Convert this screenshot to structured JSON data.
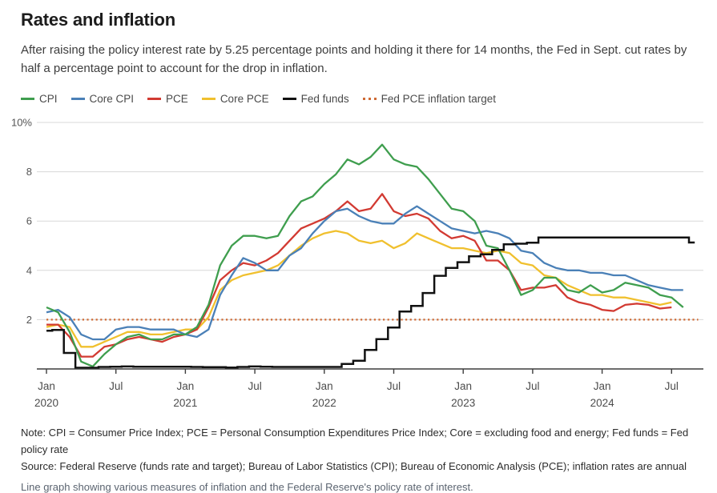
{
  "header": {
    "title": "Rates and inflation",
    "subtitle": "After raising the policy interest rate by 5.25 percentage points and holding it there for 14 months, the Fed in Sept. cut rates by half a percentage point to account for the drop in inflation."
  },
  "legend": [
    {
      "label": "CPI",
      "color": "#3f9e4e",
      "style": "solid"
    },
    {
      "label": "Core CPI",
      "color": "#4a80b7",
      "style": "solid"
    },
    {
      "label": "PCE",
      "color": "#d23a32",
      "style": "solid"
    },
    {
      "label": "Core PCE",
      "color": "#f0c02e",
      "style": "solid"
    },
    {
      "label": "Fed funds",
      "color": "#111111",
      "style": "solid"
    },
    {
      "label": "Fed PCE inflation target",
      "color": "#cf6a34",
      "style": "dotted"
    }
  ],
  "chart_data": {
    "type": "line",
    "title": "Rates and inflation",
    "xlabel": "",
    "ylabel": "percent",
    "ylim": [
      0,
      10
    ],
    "grid": true,
    "x_start_month": "2020-01",
    "y_ticks": [
      {
        "v": 10,
        "label": "10%"
      },
      {
        "v": 8,
        "label": "8"
      },
      {
        "v": 6,
        "label": "6"
      },
      {
        "v": 4,
        "label": "4"
      },
      {
        "v": 2,
        "label": "2"
      }
    ],
    "x_ticks": [
      {
        "m": 0,
        "label": "Jan",
        "year": "2020"
      },
      {
        "m": 6,
        "label": "Jul",
        "year": ""
      },
      {
        "m": 12,
        "label": "Jan",
        "year": "2021"
      },
      {
        "m": 18,
        "label": "Jul",
        "year": ""
      },
      {
        "m": 24,
        "label": "Jan",
        "year": "2022"
      },
      {
        "m": 30,
        "label": "Jul",
        "year": ""
      },
      {
        "m": 36,
        "label": "Jan",
        "year": "2023"
      },
      {
        "m": 42,
        "label": "Jul",
        "year": ""
      },
      {
        "m": 48,
        "label": "Jan",
        "year": "2024"
      },
      {
        "m": 54,
        "label": "Jul",
        "year": ""
      }
    ],
    "target_line": {
      "name": "Fed PCE inflation target",
      "value": 2.0,
      "color": "#cf6a34",
      "end_month": 56.3
    },
    "series": [
      {
        "name": "Core PCE",
        "type": "line",
        "color": "#f0c02e",
        "width": 2.3,
        "values": [
          1.7,
          1.8,
          1.7,
          0.9,
          0.9,
          1.1,
          1.3,
          1.5,
          1.5,
          1.4,
          1.4,
          1.5,
          1.6,
          1.6,
          2.1,
          3.2,
          3.6,
          3.8,
          3.9,
          4.0,
          4.2,
          4.6,
          5.0,
          5.3,
          5.5,
          5.6,
          5.5,
          5.2,
          5.1,
          5.2,
          4.9,
          5.1,
          5.5,
          5.3,
          5.1,
          4.9,
          4.9,
          4.8,
          4.7,
          4.8,
          4.7,
          4.3,
          4.2,
          3.8,
          3.7,
          3.4,
          3.2,
          3.0,
          3.0,
          2.9,
          2.9,
          2.8,
          2.7,
          2.6,
          2.7
        ]
      },
      {
        "name": "PCE",
        "type": "line",
        "color": "#d23a32",
        "width": 2.3,
        "values": [
          1.8,
          1.8,
          1.3,
          0.5,
          0.5,
          0.9,
          1.0,
          1.2,
          1.3,
          1.2,
          1.1,
          1.3,
          1.4,
          1.6,
          2.5,
          3.6,
          4.0,
          4.3,
          4.2,
          4.4,
          4.7,
          5.2,
          5.7,
          5.9,
          6.1,
          6.4,
          6.8,
          6.4,
          6.5,
          7.1,
          6.4,
          6.2,
          6.3,
          6.1,
          5.6,
          5.3,
          5.4,
          5.2,
          4.4,
          4.4,
          4.0,
          3.2,
          3.3,
          3.3,
          3.4,
          2.9,
          2.7,
          2.6,
          2.4,
          2.35,
          2.6,
          2.65,
          2.6,
          2.45,
          2.5
        ]
      },
      {
        "name": "Core CPI",
        "type": "line",
        "color": "#4a80b7",
        "width": 2.3,
        "values": [
          2.3,
          2.4,
          2.1,
          1.4,
          1.2,
          1.2,
          1.6,
          1.7,
          1.7,
          1.6,
          1.6,
          1.6,
          1.4,
          1.3,
          1.6,
          3.0,
          3.8,
          4.5,
          4.3,
          4.0,
          4.0,
          4.6,
          4.9,
          5.5,
          6.0,
          6.4,
          6.5,
          6.2,
          6.0,
          5.9,
          5.9,
          6.3,
          6.6,
          6.3,
          6.0,
          5.7,
          5.6,
          5.5,
          5.6,
          5.5,
          5.3,
          4.8,
          4.7,
          4.3,
          4.1,
          4.0,
          4.0,
          3.9,
          3.9,
          3.8,
          3.8,
          3.6,
          3.4,
          3.3,
          3.2,
          3.2
        ]
      },
      {
        "name": "CPI",
        "type": "line",
        "color": "#3f9e4e",
        "width": 2.3,
        "values": [
          2.5,
          2.3,
          1.5,
          0.3,
          0.1,
          0.6,
          1.0,
          1.3,
          1.4,
          1.2,
          1.2,
          1.4,
          1.4,
          1.7,
          2.6,
          4.2,
          5.0,
          5.4,
          5.4,
          5.3,
          5.4,
          6.2,
          6.8,
          7.0,
          7.5,
          7.9,
          8.5,
          8.3,
          8.6,
          9.1,
          8.5,
          8.3,
          8.2,
          7.7,
          7.1,
          6.5,
          6.4,
          6.0,
          5.0,
          4.9,
          4.0,
          3.0,
          3.2,
          3.7,
          3.7,
          3.2,
          3.1,
          3.4,
          3.1,
          3.2,
          3.5,
          3.4,
          3.3,
          3.0,
          2.9,
          2.5
        ]
      },
      {
        "name": "Fed funds",
        "type": "step",
        "color": "#111111",
        "width": 2.5,
        "values": [
          1.55,
          1.58,
          0.65,
          0.05,
          0.05,
          0.08,
          0.09,
          0.1,
          0.09,
          0.09,
          0.09,
          0.09,
          0.09,
          0.08,
          0.07,
          0.07,
          0.06,
          0.08,
          0.1,
          0.09,
          0.08,
          0.08,
          0.08,
          0.08,
          0.08,
          0.08,
          0.2,
          0.33,
          0.77,
          1.21,
          1.68,
          2.33,
          2.56,
          3.08,
          3.78,
          4.1,
          4.33,
          4.57,
          4.65,
          4.83,
          5.06,
          5.08,
          5.12,
          5.33,
          5.33,
          5.33,
          5.33,
          5.33,
          5.33,
          5.33,
          5.33,
          5.33,
          5.33,
          5.33,
          5.33,
          5.33,
          5.13
        ]
      }
    ]
  },
  "notes": {
    "note": "Note: CPI = Consumer Price Index; PCE = Personal Consumption Expenditures Price Index; Core = excluding food and energy; Fed funds = Fed policy rate",
    "source": "Source: Federal Reserve (funds rate and target); Bureau of Labor Statistics (CPI); Bureau of Economic Analysis (PCE); inflation rates are annual",
    "caption": "Line graph showing various measures of inflation and the Federal Reserve's policy rate of interest."
  }
}
